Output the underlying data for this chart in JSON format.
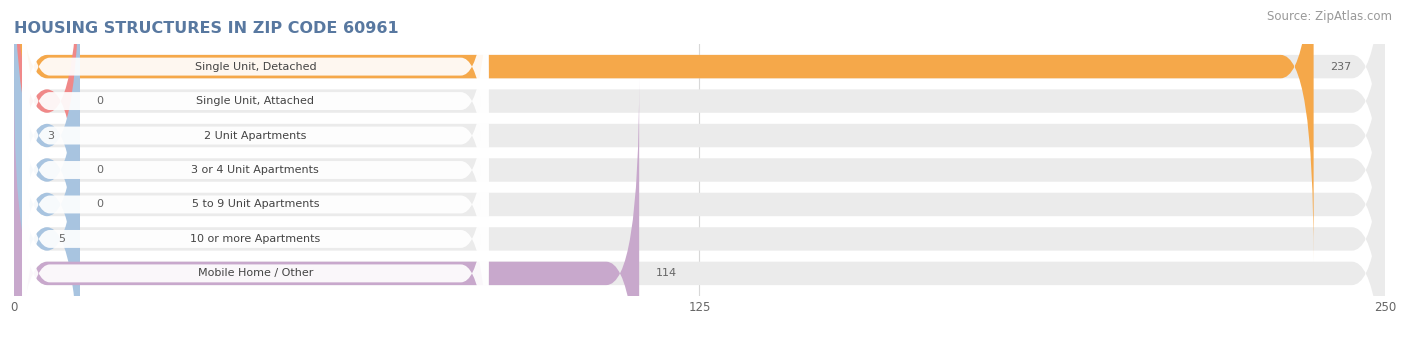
{
  "title": "HOUSING STRUCTURES IN ZIP CODE 60961",
  "source": "Source: ZipAtlas.com",
  "categories": [
    "Single Unit, Detached",
    "Single Unit, Attached",
    "2 Unit Apartments",
    "3 or 4 Unit Apartments",
    "5 to 9 Unit Apartments",
    "10 or more Apartments",
    "Mobile Home / Other"
  ],
  "values": [
    237,
    0,
    3,
    0,
    0,
    5,
    114
  ],
  "bar_colors": [
    "#F5A84A",
    "#F08888",
    "#A8C4E0",
    "#A8C4E0",
    "#A8C4E0",
    "#A8C4E0",
    "#C8A8CC"
  ],
  "bar_bg_color": "#EBEBEB",
  "xlim": [
    0,
    250
  ],
  "xticks": [
    0,
    125,
    250
  ],
  "title_color": "#5878A0",
  "title_fontsize": 11.5,
  "source_fontsize": 8.5,
  "label_fontsize": 8,
  "value_fontsize": 8,
  "background_color": "#FFFFFF",
  "grid_color": "#D8D8D8",
  "min_bar_stub": 12
}
